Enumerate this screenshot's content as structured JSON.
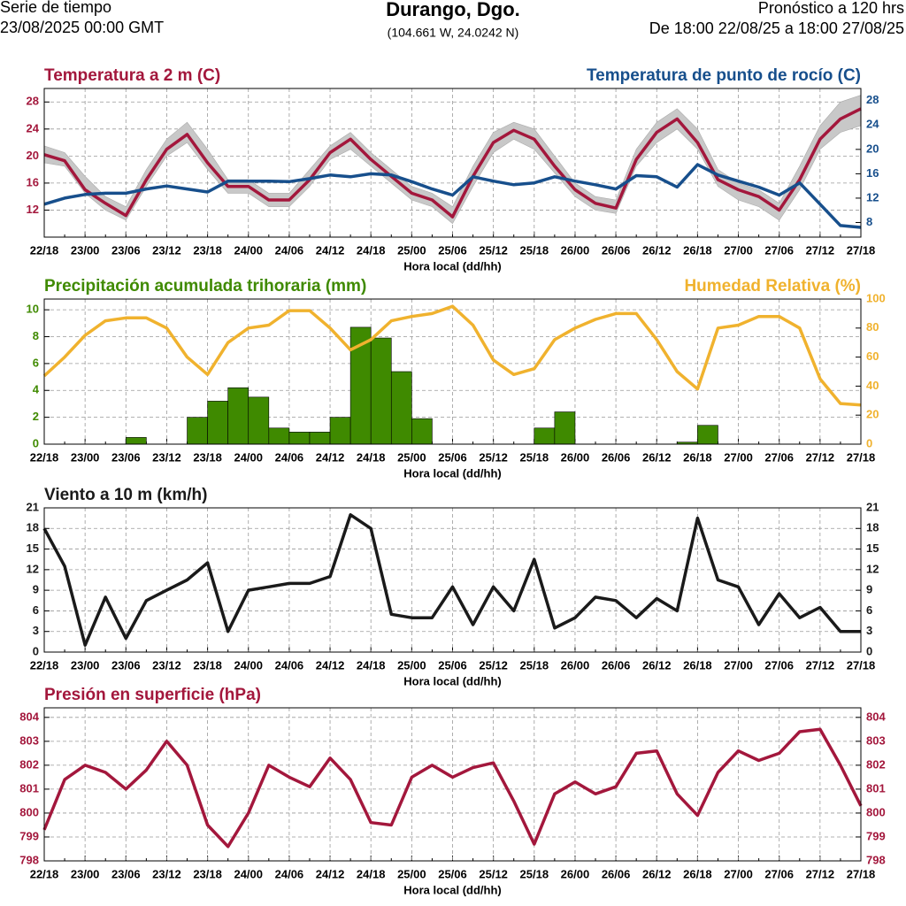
{
  "header": {
    "left_line1": "Serie de tiempo",
    "left_line2": "23/08/2025 00:00 GMT",
    "title": "Durango, Dgo.",
    "coords": "(104.661 W, 24.0242 N)",
    "right_line1": "Pronóstico a 120 hrs",
    "right_line2": "De 18:00 22/08/25 a 18:00 27/08/25"
  },
  "chart_data": [
    {
      "type": "line",
      "xlabel": "Hora local (dd/hh)",
      "grid": true,
      "categories": [
        "22/18",
        null,
        "23/00",
        null,
        "23/06",
        null,
        "23/12",
        null,
        "23/18",
        null,
        "24/00",
        null,
        "24/06",
        null,
        "24/12",
        null,
        "24/18",
        null,
        "25/00",
        null,
        "25/06",
        null,
        "25/12",
        null,
        "25/18",
        null,
        "26/00",
        null,
        "26/06",
        null,
        "26/12",
        null,
        "26/18",
        null,
        "27/00",
        null,
        "27/06",
        null,
        "27/12",
        null,
        "27/18"
      ],
      "ylim": [
        8,
        30
      ],
      "yticks": [
        12,
        16,
        20,
        24,
        28
      ],
      "y2lim": [
        5.6,
        30
      ],
      "y2ticks": [
        8,
        12,
        16,
        20,
        24,
        28
      ],
      "series": [
        {
          "name": "Temperatura a 2 m (C)",
          "color": "#a3173c",
          "values": [
            20.2,
            19.3,
            15,
            13,
            11.2,
            16.5,
            21,
            23.2,
            19,
            15.5,
            15.5,
            13.5,
            13.5,
            16.5,
            20.5,
            22.5,
            19.5,
            17,
            14.5,
            13.5,
            11,
            17,
            22,
            23.8,
            22.5,
            18.5,
            15,
            13,
            12.3,
            19.5,
            23.5,
            25.5,
            22,
            16.5,
            15,
            14,
            12,
            16.5,
            22.5,
            25.5,
            27
          ],
          "band": {
            "color": "#c8c8c8",
            "upper": [
              21.5,
              20.5,
              17,
              14,
              12.5,
              18,
              22.5,
              25,
              21,
              16.5,
              16.5,
              14.5,
              14.5,
              18,
              21.5,
              23.5,
              20.5,
              18,
              15.5,
              14.5,
              12.5,
              18.5,
              23.5,
              25,
              24,
              20,
              16,
              14,
              13.5,
              21,
              25,
              27,
              24,
              18,
              16,
              15,
              13,
              18.5,
              24.5,
              28,
              29
            ],
            "lower": [
              19,
              18.5,
              14.5,
              12,
              10.5,
              15.5,
              20,
              22,
              18,
              14.5,
              14.5,
              12.5,
              12.5,
              15.5,
              19.5,
              21,
              18.5,
              16,
              13.5,
              12.5,
              10,
              15.5,
              20.5,
              22.5,
              21,
              17.5,
              14,
              12,
              11.5,
              18.5,
              22,
              24,
              21,
              15.5,
              13.5,
              12.5,
              10.5,
              15,
              21,
              23.5,
              24.5
            ]
          }
        },
        {
          "name": "Temperatura de punto de rocío (C)",
          "color": "#174f8c",
          "axis": "y2",
          "values": [
            11,
            12,
            12.6,
            12.8,
            12.8,
            13.5,
            14,
            13.5,
            13,
            14.8,
            14.8,
            14.8,
            14.7,
            15.2,
            15.8,
            15.5,
            16,
            15.8,
            14.7,
            13.5,
            12.5,
            15.5,
            14.8,
            14.2,
            14.5,
            15.5,
            14.8,
            14.2,
            13.5,
            15.7,
            15.5,
            13.8,
            17.5,
            15.8,
            14.8,
            13.8,
            12.5,
            14.5,
            11,
            7.5,
            7.2
          ]
        }
      ]
    },
    {
      "type": "bar",
      "xlabel": "Hora local (dd/hh)",
      "grid": true,
      "categories": [
        "22/18",
        null,
        "23/00",
        null,
        "23/06",
        null,
        "23/12",
        null,
        "23/18",
        null,
        "24/00",
        null,
        "24/06",
        null,
        "24/12",
        null,
        "24/18",
        null,
        "25/00",
        null,
        "25/06",
        null,
        "25/12",
        null,
        "25/18",
        null,
        "26/00",
        null,
        "26/06",
        null,
        "26/12",
        null,
        "26/18",
        null,
        "27/00",
        null,
        "27/06",
        null,
        "27/12",
        null,
        "27/18"
      ],
      "ylim": [
        0,
        10.8
      ],
      "yticks": [
        0,
        2,
        4,
        6,
        8,
        10
      ],
      "y2lim": [
        0,
        100
      ],
      "y2ticks": [
        0,
        20,
        40,
        60,
        80,
        100
      ],
      "series": [
        {
          "name": "Precipitación acumulada trihoraria (mm)",
          "color": "#3f8a00",
          "values": [
            0,
            0,
            0,
            0,
            0,
            0.5,
            0,
            0,
            2,
            3.2,
            4.2,
            3.5,
            1.2,
            0.9,
            0.9,
            2,
            8.7,
            7.9,
            5.4,
            1.9,
            0,
            0,
            0,
            0,
            0,
            1.2,
            2.4,
            0,
            0,
            0,
            0,
            0,
            0.15,
            1.4,
            0,
            0,
            0,
            0,
            0,
            0,
            0
          ]
        },
        {
          "name": "Humedad Relativa (%)",
          "type": "line",
          "color": "#f0b22e",
          "axis": "y2",
          "values": [
            47,
            60,
            75,
            85,
            87,
            87,
            80,
            60,
            48,
            70,
            80,
            82,
            92,
            92,
            80,
            65,
            72,
            85,
            88,
            90,
            95,
            82,
            58,
            48,
            52,
            72,
            80,
            86,
            90,
            90,
            72,
            50,
            38,
            80,
            82,
            88,
            88,
            80,
            45,
            28,
            27
          ]
        }
      ]
    },
    {
      "type": "line",
      "xlabel": "Hora local (dd/hh)",
      "grid": true,
      "mirror_yticks": true,
      "categories": [
        "22/18",
        null,
        "23/00",
        null,
        "23/06",
        null,
        "23/12",
        null,
        "23/18",
        null,
        "24/00",
        null,
        "24/06",
        null,
        "24/12",
        null,
        "24/18",
        null,
        "25/00",
        null,
        "25/06",
        null,
        "25/12",
        null,
        "25/18",
        null,
        "26/00",
        null,
        "26/06",
        null,
        "26/12",
        null,
        "26/18",
        null,
        "27/00",
        null,
        "27/06",
        null,
        "27/12",
        null,
        "27/18"
      ],
      "ylim": [
        0,
        21
      ],
      "yticks": [
        0,
        3,
        6,
        9,
        12,
        15,
        18,
        21
      ],
      "series": [
        {
          "name": "Viento a 10 m (km/h)",
          "color": "#1a1a1a",
          "values": [
            18,
            12.5,
            1,
            8,
            2,
            7.5,
            9,
            10.5,
            13,
            3,
            9,
            9.5,
            10,
            10,
            11,
            20,
            18,
            5.5,
            5,
            5,
            9.5,
            4,
            9.5,
            6,
            13.5,
            3.5,
            5,
            8,
            7.5,
            5,
            7.8,
            6,
            19.5,
            10.5,
            9.5,
            4,
            8.5,
            5,
            6.5,
            3,
            3
          ]
        }
      ]
    },
    {
      "type": "line",
      "xlabel": "Hora local (dd/hh)",
      "grid": true,
      "mirror_yticks": true,
      "categories": [
        "22/18",
        null,
        "23/00",
        null,
        "23/06",
        null,
        "23/12",
        null,
        "23/18",
        null,
        "24/00",
        null,
        "24/06",
        null,
        "24/12",
        null,
        "24/18",
        null,
        "25/00",
        null,
        "25/06",
        null,
        "25/12",
        null,
        "25/18",
        null,
        "26/00",
        null,
        "26/06",
        null,
        "26/12",
        null,
        "26/18",
        null,
        "27/00",
        null,
        "27/06",
        null,
        "27/12",
        null,
        "27/18"
      ],
      "ylim": [
        798,
        804.4
      ],
      "yticks": [
        798,
        799,
        800,
        801,
        802,
        803,
        804
      ],
      "series": [
        {
          "name": "Presión en superficie (hPa)",
          "color": "#a3173c",
          "values": [
            799.3,
            801.4,
            802,
            801.7,
            801,
            801.8,
            803,
            802,
            799.5,
            798.6,
            800,
            802,
            801.5,
            801.1,
            802.3,
            801.4,
            799.6,
            799.5,
            801.5,
            802,
            801.5,
            801.9,
            802.1,
            800.5,
            798.7,
            800.8,
            801.3,
            800.8,
            801.1,
            802.5,
            802.6,
            800.8,
            799.9,
            801.7,
            802.6,
            802.2,
            802.5,
            803.4,
            803.5,
            802,
            800.3
          ]
        }
      ]
    }
  ]
}
